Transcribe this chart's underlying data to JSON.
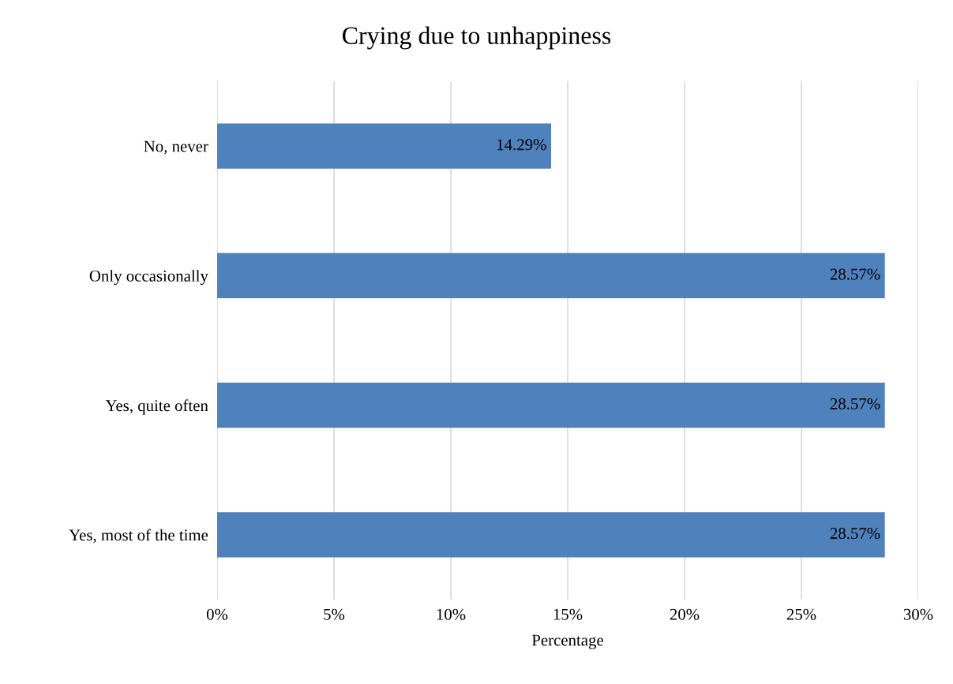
{
  "chart_data": {
    "type": "bar",
    "orientation": "horizontal",
    "title": "Crying due to unhappiness",
    "xlabel": "Percentage",
    "categories": [
      "No, never",
      "Only occasionally",
      "Yes, quite often",
      "Yes, most of the time"
    ],
    "values": [
      14.29,
      28.57,
      28.57,
      28.57
    ],
    "color": "#4f81bd",
    "value_labels": [
      "14.29%",
      "28.57%",
      "28.57%",
      "28.57%"
    ],
    "xlim": [
      0,
      30
    ],
    "xticks": [
      {
        "value": 0,
        "label": "0%"
      },
      {
        "value": 5,
        "label": "5%"
      },
      {
        "value": 10,
        "label": "10%"
      },
      {
        "value": 15,
        "label": "15%"
      },
      {
        "value": 20,
        "label": "20%"
      },
      {
        "value": 25,
        "label": "25%"
      },
      {
        "value": 30,
        "label": "30%"
      }
    ],
    "grid": "x",
    "legend": false
  }
}
